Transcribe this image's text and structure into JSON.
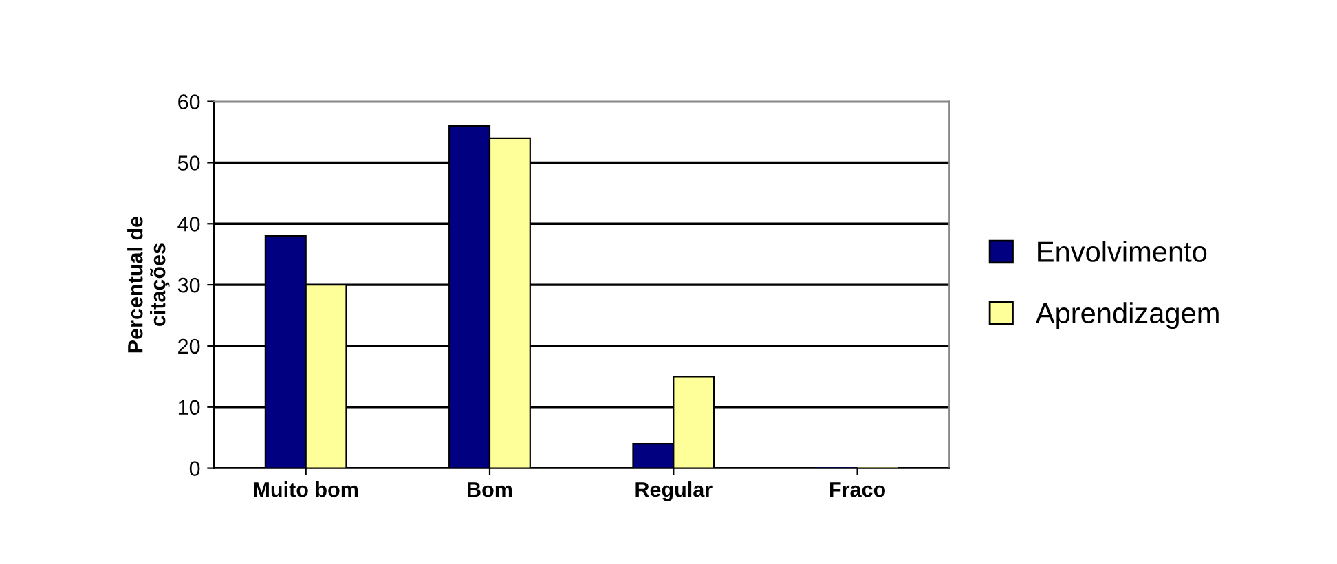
{
  "chart_data": {
    "type": "bar",
    "ylabel": "Percentual de\ncitações",
    "categories": [
      "Muito bom",
      "Bom",
      "Regular",
      "Fraco"
    ],
    "series": [
      {
        "name": "Envolvimento",
        "color": "#000080",
        "values": [
          38,
          56,
          4,
          0
        ]
      },
      {
        "name": "Aprendizagem",
        "color": "#ffff99",
        "values": [
          30,
          54,
          15,
          0
        ]
      }
    ],
    "ylim": [
      0,
      60
    ],
    "yticks": [
      0,
      10,
      20,
      30,
      40,
      50,
      60
    ],
    "grid": "y",
    "legend": "right"
  }
}
